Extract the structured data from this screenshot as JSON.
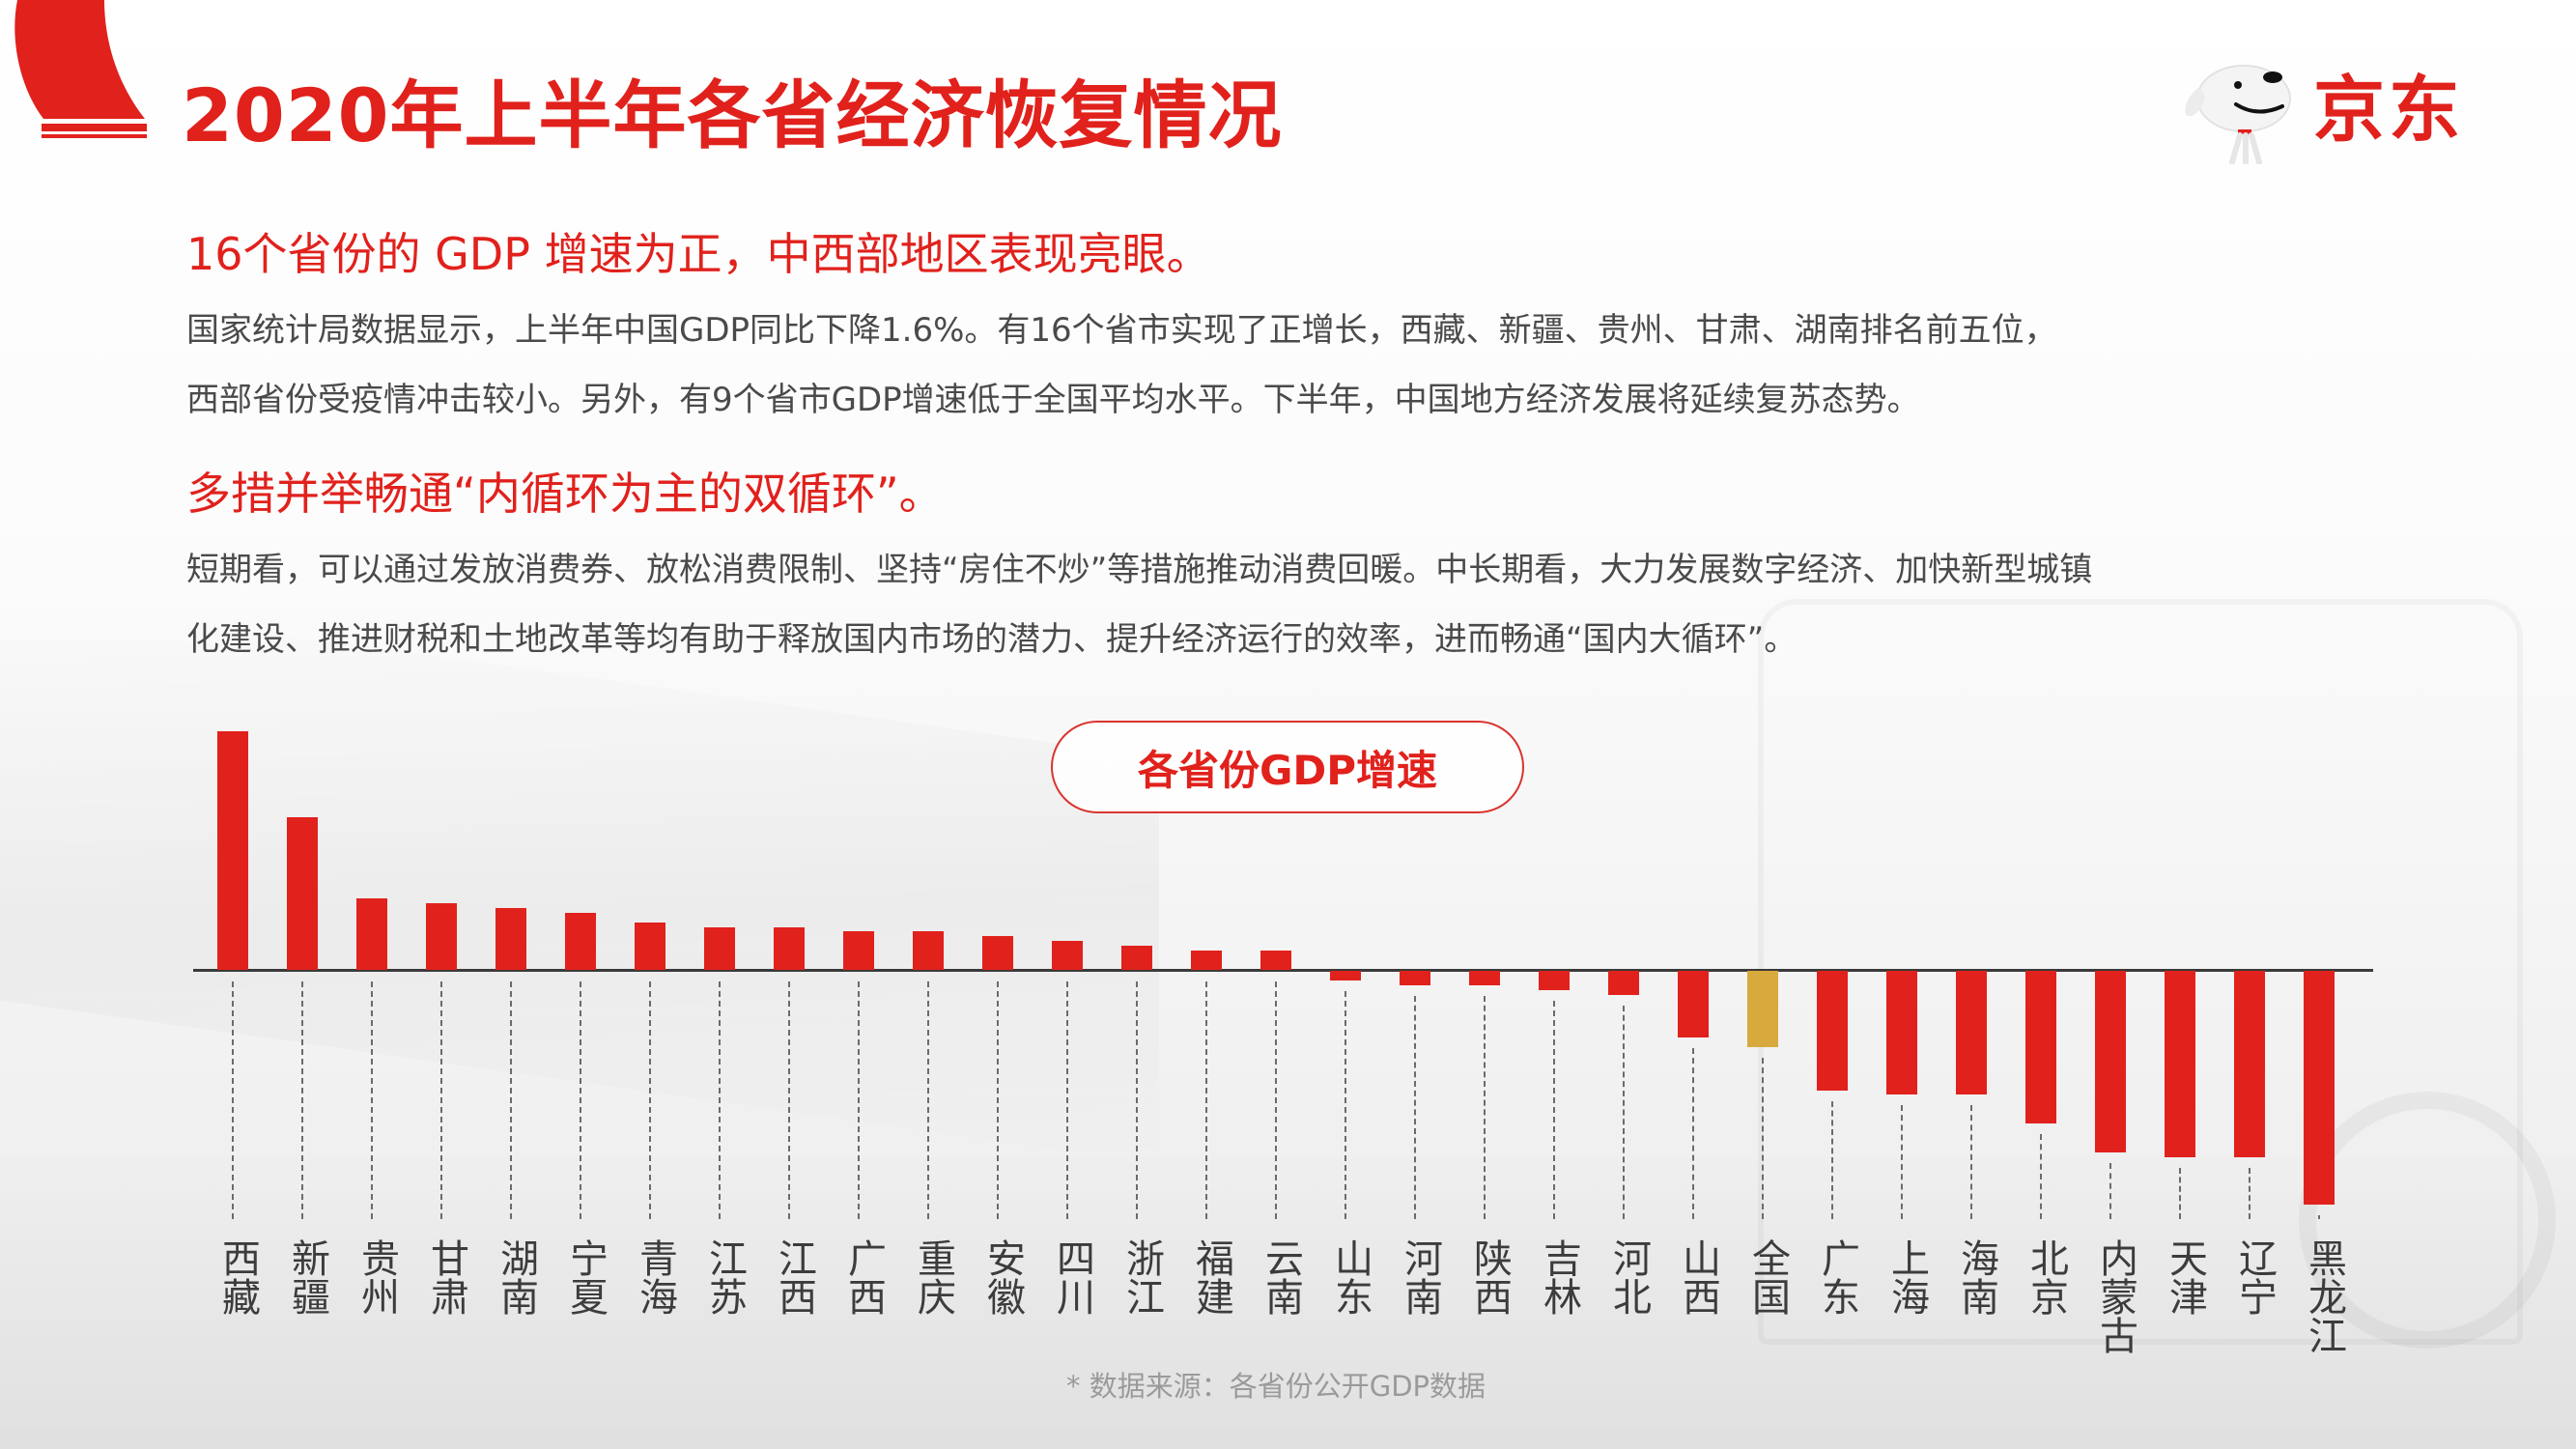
{
  "header": {
    "title": "2020年上半年各省经济恢复情况",
    "logo_text": "京东",
    "logo_icon": "jd-joy-dog-icon"
  },
  "section1": {
    "heading": "16个省份的 GDP 增速为正，中西部地区表现亮眼。",
    "lines": [
      "国家统计局数据显示，上半年中国GDP同比下降1.6%。有16个省市实现了正增长，西藏、新疆、贵州、甘肃、湖南排名前五位，",
      "西部省份受疫情冲击较小。另外，有9个省市GDP增速低于全国平均水平。下半年，中国地方经济发展将延续复苏态势。"
    ]
  },
  "section2": {
    "heading": "多措并举畅通“内循环为主的双循环”。",
    "lines": [
      "短期看，可以通过发放消费券、放松消费限制、坚持“房住不炒”等措施推动消费回暖。中长期看，大力发展数字经济、加快新型城镇",
      "化建设、推进财税和土地改革等均有助于释放国内市场的潜力、提升经济运行的效率，进而畅通“国内大循环”。"
    ]
  },
  "colors": {
    "accent": "#e1211c",
    "national_bar": "#d8a93c",
    "body_text": "#4a4a4a"
  },
  "chart_data": {
    "type": "bar",
    "title": "各省份GDP增速",
    "xlabel": "",
    "ylabel": "",
    "unit": "%",
    "ylim": [
      -5.5,
      5.5
    ],
    "grid": false,
    "legend": null,
    "categories": [
      "西藏",
      "新疆",
      "贵州",
      "甘肃",
      "湖南",
      "宁夏",
      "青海",
      "江苏",
      "江西",
      "广西",
      "重庆",
      "安徽",
      "四川",
      "浙江",
      "福建",
      "云南",
      "山东",
      "河南",
      "陕西",
      "吉林",
      "河北",
      "山西",
      "全国",
      "广东",
      "上海",
      "海南",
      "北京",
      "内蒙古",
      "天津",
      "辽宁",
      "黑龙江"
    ],
    "values": [
      5.0,
      3.2,
      1.5,
      1.4,
      1.3,
      1.2,
      1.0,
      0.9,
      0.9,
      0.8,
      0.8,
      0.7,
      0.6,
      0.5,
      0.4,
      0.4,
      -0.2,
      -0.3,
      -0.3,
      -0.4,
      -0.5,
      -1.4,
      -1.6,
      -2.5,
      -2.6,
      -2.6,
      -3.2,
      -3.8,
      -3.9,
      -3.9,
      -4.9
    ],
    "highlight": {
      "category": "全国",
      "color": "#d8a93c"
    },
    "bar_color": "#e1211c",
    "source_note": "* 数据来源：各省份公开GDP数据"
  }
}
